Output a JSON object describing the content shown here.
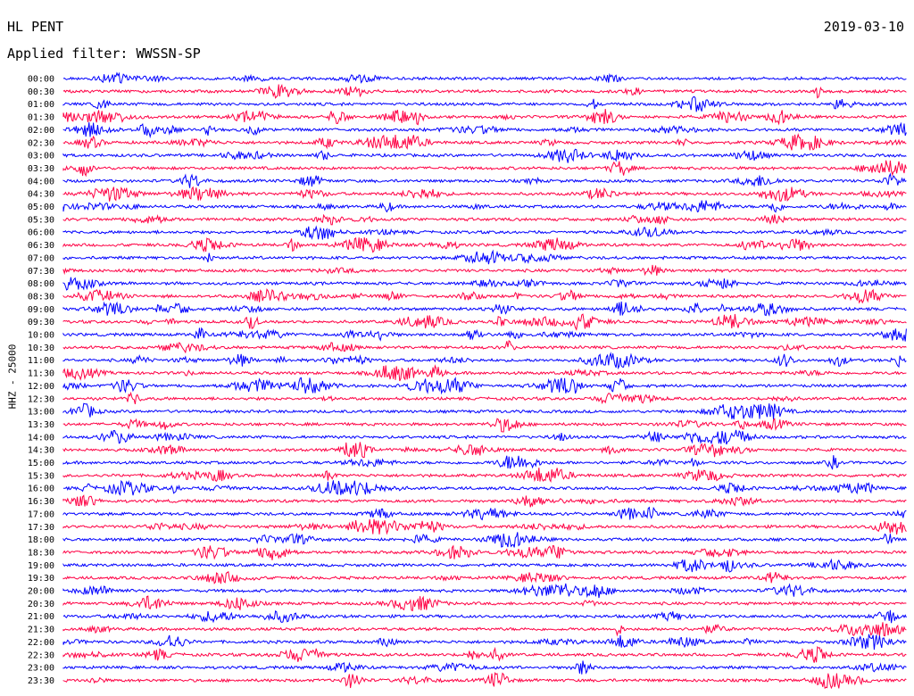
{
  "header": {
    "station": "HL PENT",
    "date": "2019-03-10",
    "filter": "Applied filter: WWSSN-SP"
  },
  "colors": {
    "odd": "#0000ff",
    "even": "#ff0044"
  },
  "chart_data": {
    "type": "line",
    "title": "HL PENT",
    "ylabel": "HHZ - 25000",
    "y_ticks": [
      "00:00",
      "00:30",
      "01:00",
      "01:30",
      "02:00",
      "02:30",
      "03:00",
      "03:30",
      "04:00",
      "04:30",
      "05:00",
      "05:30",
      "06:00",
      "06:30",
      "07:00",
      "07:30",
      "08:00",
      "08:30",
      "09:00",
      "09:30",
      "10:00",
      "10:30",
      "11:00",
      "11:30",
      "12:00",
      "12:30",
      "13:00",
      "13:30",
      "14:00",
      "14:30",
      "15:00",
      "15:30",
      "16:00",
      "16:30",
      "17:00",
      "17:30",
      "18:00",
      "18:30",
      "19:00",
      "19:30",
      "20:00",
      "20:30",
      "21:00",
      "21:30",
      "22:00",
      "22:30",
      "23:00",
      "23:30"
    ],
    "trace_minutes": 30,
    "series_colors": [
      "blue",
      "red"
    ],
    "legend": "none",
    "grid": false
  }
}
